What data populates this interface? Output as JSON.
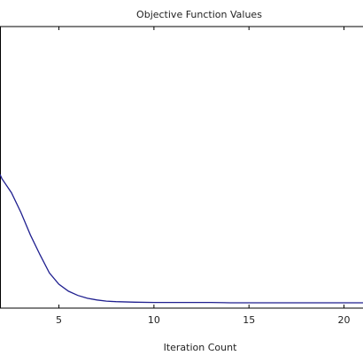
{
  "chart_data": {
    "type": "line",
    "title": "Objective Function Values",
    "xlabel": "Iteration Count",
    "ylabel": "",
    "xlim": [
      1.9,
      21
    ],
    "ylim": [
      0,
      1
    ],
    "xticks": [
      5,
      10,
      15,
      20
    ],
    "xtick_labels": [
      "5",
      "10",
      "15",
      "20"
    ],
    "grid": false,
    "legend": "none",
    "line_color": "#1f1f8f",
    "axis_color": "#000000",
    "series": [
      {
        "x": [
          1.9,
          2,
          2.5,
          3,
          3.5,
          4,
          4.5,
          5,
          5.5,
          6,
          6.5,
          7,
          7.5,
          8,
          9,
          10,
          11,
          12,
          13,
          14,
          15,
          16,
          17,
          18,
          19,
          20,
          21
        ],
        "y": [
          0.475,
          0.46,
          0.41,
          0.34,
          0.26,
          0.19,
          0.125,
          0.085,
          0.06,
          0.045,
          0.035,
          0.029,
          0.025,
          0.023,
          0.021,
          0.02,
          0.02,
          0.02,
          0.02,
          0.019,
          0.019,
          0.019,
          0.019,
          0.019,
          0.019,
          0.019,
          0.019
        ]
      }
    ]
  }
}
